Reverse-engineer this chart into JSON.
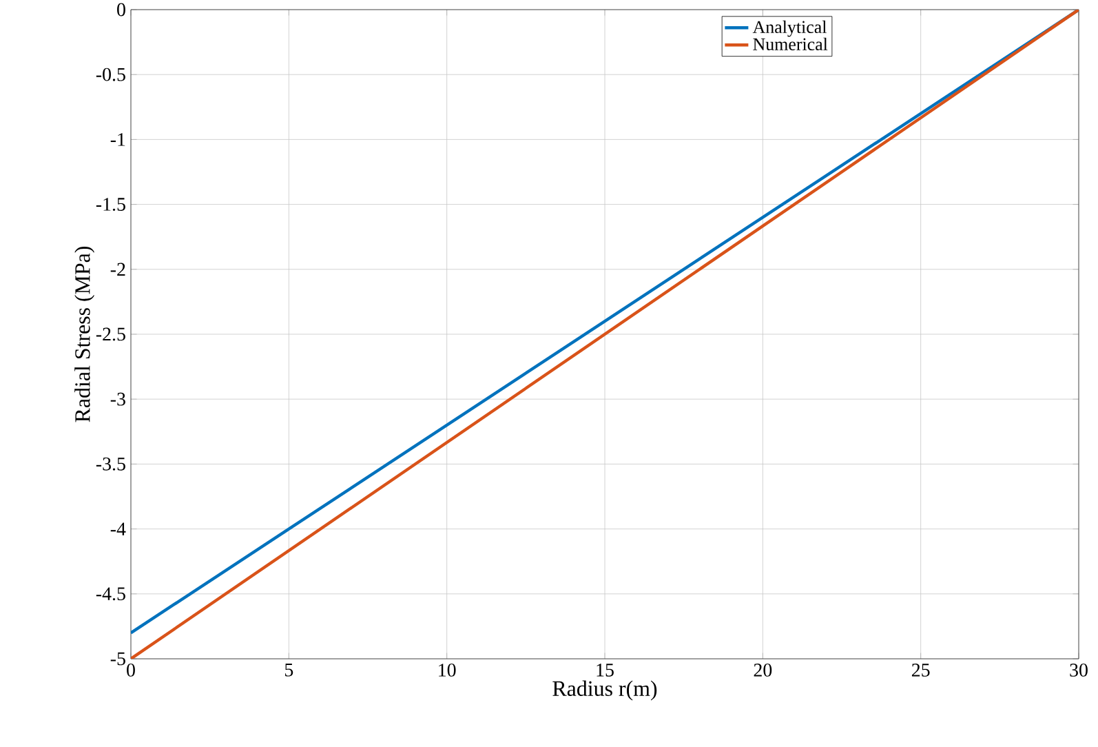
{
  "chart_data": {
    "type": "line",
    "xlabel": "Radius r(m)",
    "ylabel": "Radial Stress (MPa)",
    "x": [
      0,
      30
    ],
    "series": [
      {
        "name": "Analytical",
        "color": "#0072bd",
        "values": [
          -4.8,
          0
        ]
      },
      {
        "name": "Numerical",
        "color": "#d95319",
        "values": [
          -5,
          0
        ]
      }
    ],
    "xlim": [
      0,
      30
    ],
    "ylim": [
      -5,
      0
    ],
    "xticks": [
      0,
      5,
      10,
      15,
      20,
      25,
      30
    ],
    "yticks": [
      -5,
      -4.5,
      -4,
      -3.5,
      -3,
      -2.5,
      -2,
      -1.5,
      -1,
      -0.5,
      0
    ],
    "grid": true,
    "legend": "top right"
  }
}
